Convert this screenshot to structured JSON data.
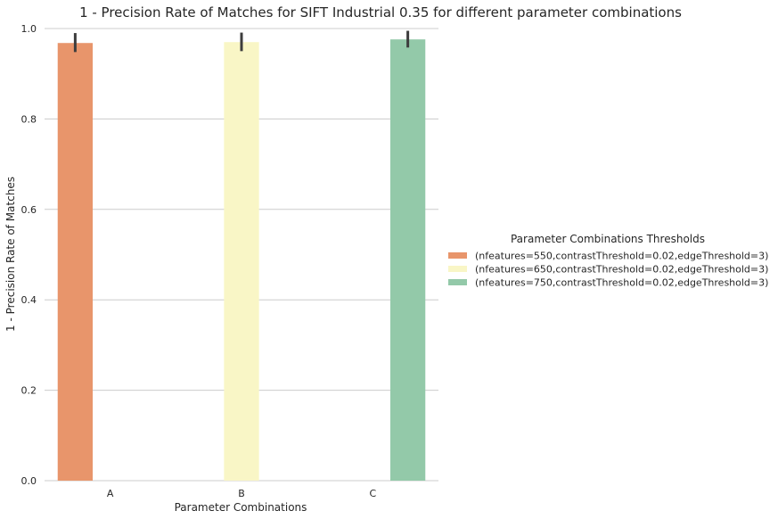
{
  "chart_data": {
    "type": "bar",
    "title": "1 - Precision Rate of Matches for SIFT Industrial 0.35 for different parameter combinations",
    "xlabel": "Parameter Combinations",
    "ylabel": "1 - Precision Rate of Matches",
    "categories": [
      "A",
      "B",
      "C"
    ],
    "ylim": [
      0,
      1.0
    ],
    "yticks": [
      "0.0",
      "0.2",
      "0.4",
      "0.6",
      "0.8",
      "1.0"
    ],
    "grid": true,
    "legend": {
      "title": "Parameter Combinations Thresholds",
      "placement": "center-right"
    },
    "series": [
      {
        "name": "(nfeatures=550,contrastThreshold=0.02,edgeThreshold=3)",
        "color": "#e8956b",
        "values": [
          0.968,
          null,
          null
        ],
        "err_low": [
          0.948,
          null,
          null
        ],
        "err_high": [
          0.99,
          null,
          null
        ]
      },
      {
        "name": "(nfeatures=650,contrastThreshold=0.02,edgeThreshold=3)",
        "color": "#f9f6c6",
        "values": [
          null,
          0.97,
          null
        ],
        "err_low": [
          null,
          0.95,
          null
        ],
        "err_high": [
          null,
          0.991,
          null
        ]
      },
      {
        "name": "(nfeatures=750,contrastThreshold=0.02,edgeThreshold=3)",
        "color": "#93c9a9",
        "values": [
          null,
          null,
          0.976
        ],
        "err_low": [
          null,
          null,
          0.958
        ],
        "err_high": [
          null,
          null,
          0.995
        ]
      }
    ]
  }
}
